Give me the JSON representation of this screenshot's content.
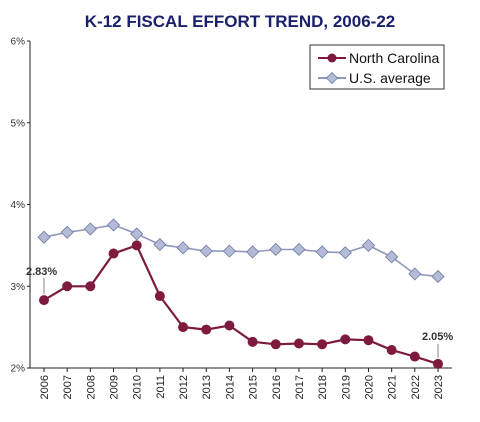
{
  "chart_data": {
    "type": "line",
    "title": "K-12 FISCAL EFFORT TREND, 2006-22",
    "xlabel": "",
    "ylabel": "",
    "ylim": [
      2,
      6
    ],
    "yticks": [
      "2%",
      "3%",
      "4%",
      "5%",
      "6%"
    ],
    "categories": [
      "2006",
      "2007",
      "2008",
      "2009",
      "2010",
      "2011",
      "2012",
      "2013",
      "2014",
      "2015",
      "2016",
      "2017",
      "2018",
      "2019",
      "2020",
      "2021",
      "2022",
      "2023"
    ],
    "series": [
      {
        "name": "North Carolina",
        "color": "#7d1a3e",
        "marker": "circle",
        "values": [
          2.83,
          3.0,
          3.0,
          3.4,
          3.5,
          2.88,
          2.5,
          2.47,
          2.52,
          2.32,
          2.29,
          2.3,
          2.29,
          2.35,
          2.34,
          2.22,
          2.14,
          2.05
        ]
      },
      {
        "name": "U.S. average",
        "color": "#8f99bd",
        "marker": "diamond",
        "values": [
          3.6,
          3.66,
          3.7,
          3.75,
          3.64,
          3.51,
          3.47,
          3.43,
          3.43,
          3.42,
          3.45,
          3.45,
          3.42,
          3.41,
          3.5,
          3.36,
          3.15,
          3.12
        ]
      }
    ],
    "annotations": [
      {
        "text": "2.83%",
        "series": 0,
        "index": 0
      },
      {
        "text": "2.05%",
        "series": 0,
        "index": 17
      }
    ],
    "legend": "top-right",
    "grid": false
  }
}
